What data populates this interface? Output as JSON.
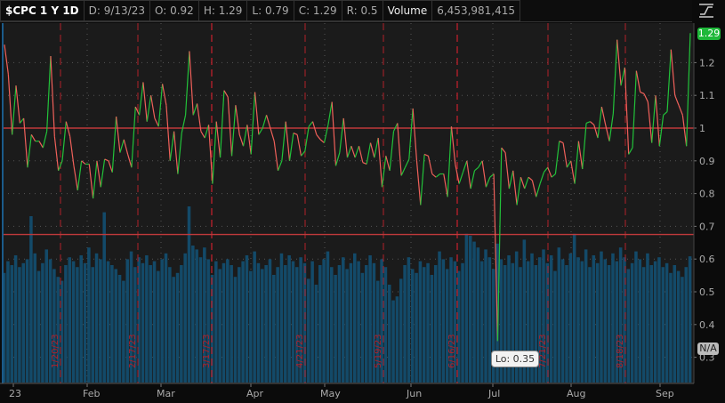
{
  "header": {
    "symbol": "$CPC 1 Y 1D",
    "date": "D: 9/13/23",
    "open": "O: 0.92",
    "high": "H: 1.29",
    "low": "L: 0.79",
    "close": "C: 1.29",
    "range": "R: 0.5",
    "volume_label": "Volume",
    "volume_value": "6,453,981,415"
  },
  "price_bubble": "1.29",
  "na_bubble": "N/A",
  "low_bubble": "Lo: 0.35",
  "colors": {
    "up": "#22c23a",
    "down": "#f0605a",
    "volume": "#134a69",
    "level_line": "#c0393b",
    "expiration": "#b0202a",
    "background": "#1b1b1b"
  },
  "chart_data": {
    "type": "line",
    "ylim": [
      0.2,
      1.35
    ],
    "y_ticks": [
      "1.2",
      "1.1",
      "1",
      "0.9",
      "0.8",
      "0.7",
      "0.6",
      "0.5",
      "0.4",
      "0.3"
    ],
    "x_ticks": [
      "23",
      "Feb",
      "Mar",
      "Apr",
      "May",
      "Jun",
      "Jul",
      "Aug",
      "Sep"
    ],
    "level_lines": [
      1.0,
      0.675
    ],
    "expirations": [
      "1/20/23",
      "2/17/23",
      "3/17/23",
      "4/21/23",
      "5/19/23",
      "6/16/23",
      "7/21/23",
      "8/18/23"
    ],
    "close": [
      1.255,
      1.165,
      0.98,
      1.13,
      1.015,
      1.03,
      0.88,
      0.98,
      0.96,
      0.96,
      0.94,
      0.99,
      1.22,
      0.975,
      0.87,
      0.9,
      1.02,
      0.975,
      0.885,
      0.81,
      0.9,
      0.89,
      0.89,
      0.785,
      0.9,
      0.82,
      0.905,
      0.9,
      0.865,
      1.035,
      0.925,
      0.965,
      0.92,
      0.88,
      1.065,
      1.04,
      1.14,
      1.02,
      1.1,
      1.03,
      1.005,
      1.135,
      1.07,
      0.9,
      0.99,
      0.86,
      0.985,
      1.04,
      1.235,
      1.04,
      1.075,
      0.99,
      0.97,
      1.01,
      0.83,
      1.02,
      0.91,
      1.115,
      1.095,
      0.915,
      1.07,
      0.98,
      0.945,
      1.01,
      0.92,
      1.11,
      0.98,
      1.0,
      1.04,
      1.0,
      0.96,
      0.87,
      0.9,
      1.02,
      0.9,
      0.985,
      0.98,
      0.915,
      0.93,
      1.005,
      1.02,
      0.98,
      0.965,
      0.955,
      1.01,
      1.08,
      0.885,
      0.925,
      1.03,
      0.91,
      0.945,
      0.91,
      0.945,
      0.895,
      0.89,
      0.955,
      0.91,
      0.97,
      0.82,
      0.915,
      0.87,
      0.99,
      1.015,
      0.855,
      0.88,
      0.905,
      1.06,
      0.9,
      0.765,
      0.92,
      0.915,
      0.86,
      0.85,
      0.86,
      0.86,
      0.79,
      1.005,
      0.89,
      0.83,
      0.865,
      0.9,
      0.815,
      0.87,
      0.88,
      0.9,
      0.82,
      0.85,
      0.86,
      0.35,
      0.94,
      0.925,
      0.815,
      0.87,
      0.765,
      0.85,
      0.815,
      0.85,
      0.84,
      0.79,
      0.83,
      0.865,
      0.88,
      0.85,
      0.86,
      0.96,
      0.955,
      0.88,
      0.9,
      0.83,
      0.96,
      0.875,
      1.015,
      1.02,
      1.01,
      0.97,
      1.065,
      1.01,
      0.96,
      1.045,
      1.27,
      1.13,
      1.185,
      0.92,
      0.94,
      1.175,
      1.11,
      1.105,
      1.08,
      0.955,
      1.1,
      0.945,
      1.04,
      1.05,
      1.24,
      1.1,
      1.07,
      1.04,
      0.945,
      1.29
    ],
    "volume_billions": [
      5.6,
      6.2,
      6.0,
      6.5,
      5.9,
      6.1,
      6.3,
      8.5,
      6.6,
      5.7,
      6.1,
      6.8,
      6.3,
      5.8,
      5.4,
      5.2,
      6.0,
      6.4,
      6.2,
      5.9,
      6.5,
      6.1,
      6.9,
      5.9,
      6.6,
      6.3,
      8.7,
      6.2,
      6.0,
      5.8,
      5.5,
      5.2,
      6.3,
      6.7,
      5.9,
      6.4,
      6.1,
      6.5,
      6.0,
      6.2,
      5.7,
      6.3,
      6.6,
      5.9,
      5.4,
      5.6,
      6.0,
      6.6,
      9.0,
      7.0,
      6.8,
      6.4,
      6.9,
      6.3,
      5.5,
      6.2,
      5.8,
      6.1,
      6.3,
      6.0,
      5.4,
      5.9,
      6.2,
      6.5,
      5.7,
      6.7,
      6.1,
      5.8,
      6.0,
      6.3,
      5.5,
      5.9,
      6.6,
      6.0,
      6.5,
      6.2,
      5.9,
      6.4,
      6.1,
      5.3,
      6.2,
      5.0,
      6.0,
      6.3,
      6.7,
      5.9,
      5.5,
      6.0,
      6.4,
      5.8,
      6.1,
      6.6,
      6.2,
      5.6,
      6.0,
      6.5,
      6.1,
      5.2,
      6.3,
      5.9,
      5.0,
      4.2,
      4.4,
      5.3,
      6.0,
      6.4,
      5.8,
      5.6,
      6.2,
      5.9,
      6.1,
      5.5,
      6.0,
      6.7,
      6.3,
      5.8,
      6.4,
      6.2,
      5.7,
      6.1,
      7.6,
      7.5,
      7.2,
      6.9,
      6.2,
      6.8,
      6.4,
      5.8,
      7.1,
      6.3,
      6.0,
      6.5,
      6.1,
      6.7,
      5.9,
      7.3,
      6.2,
      6.6,
      6.0,
      6.4,
      6.8,
      6.1,
      6.5,
      5.7,
      6.9,
      6.3,
      6.0,
      6.6,
      7.6,
      6.4,
      6.2,
      6.8,
      5.9,
      6.5,
      6.1,
      6.7,
      6.3,
      6.0,
      6.6,
      6.2,
      6.9,
      6.4,
      5.8,
      6.1,
      6.7,
      6.3,
      5.9,
      6.6,
      6.0,
      6.2,
      6.4,
      5.9,
      6.1,
      5.6,
      6.0,
      5.7,
      5.4,
      5.9,
      6.45
    ]
  }
}
